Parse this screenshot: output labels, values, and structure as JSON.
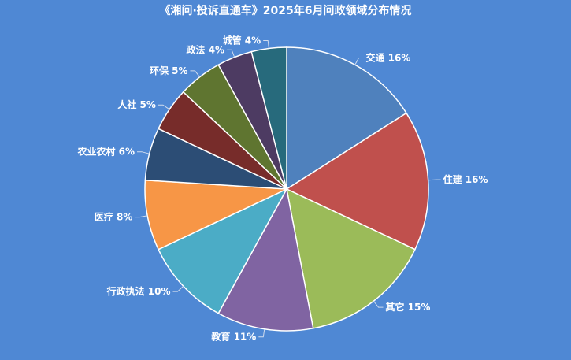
{
  "chart_data": {
    "type": "pie",
    "title": "《湘问·投诉直通车》2025年6月问政领域分布情况",
    "labels": [
      "交通",
      "住建",
      "其它",
      "教育",
      "行政执法",
      "医疗",
      "农业农村",
      "人社",
      "环保",
      "政法",
      "城管"
    ],
    "values": [
      16,
      16,
      15,
      11,
      10,
      8,
      6,
      5,
      5,
      4,
      4
    ],
    "unit": "%",
    "colors": [
      "#4f81bd",
      "#c0504d",
      "#9bbb59",
      "#8064a2",
      "#4bacc6",
      "#f79646",
      "#2c4d75",
      "#772c2a",
      "#5f7530",
      "#4d3b62",
      "#276a7c"
    ],
    "background": "#4f88d4"
  }
}
